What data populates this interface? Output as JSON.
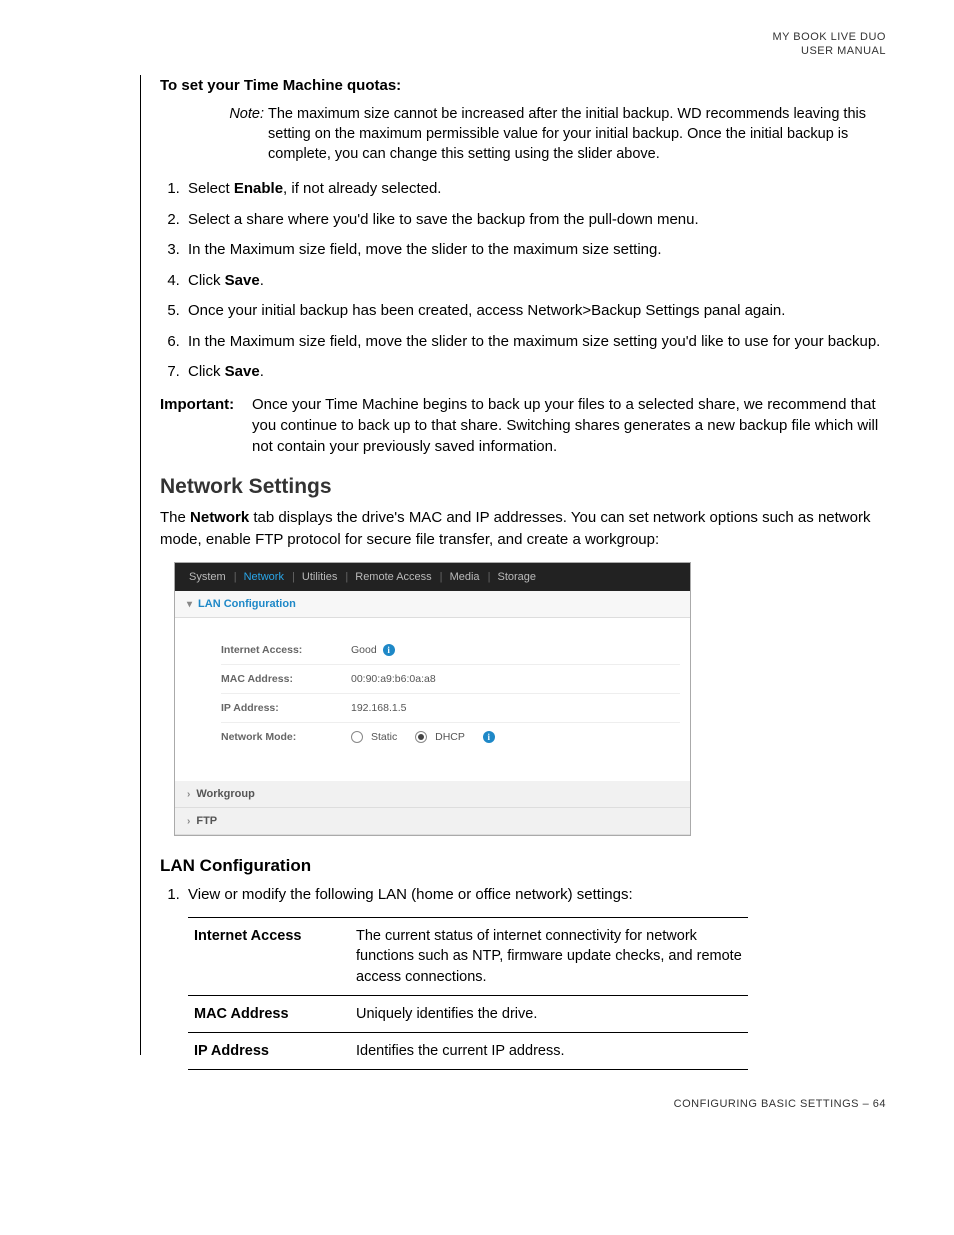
{
  "header": {
    "line1": "MY BOOK LIVE DUO",
    "line2": "USER MANUAL"
  },
  "tm": {
    "heading": "To set your Time Machine quotas:",
    "note_label": "Note:",
    "note": "The maximum size cannot be increased after the initial backup. WD recommends leaving this setting on the maximum permissible value for your initial backup. Once the initial backup is complete, you can change this setting using the slider above.",
    "steps": {
      "s1a": "Select ",
      "s1b": "Enable",
      "s1c": ", if not already selected.",
      "s2": "Select a share where you'd like to save the backup from the pull-down menu.",
      "s3": "In the Maximum size field, move the slider to the maximum size setting.",
      "s4a": "Click ",
      "s4b": "Save",
      "s4c": ".",
      "s5": "Once your initial backup has been created, access Network>Backup Settings panal again.",
      "s6": "In the Maximum size field, move the slider to the maximum size setting you'd like to use for your backup.",
      "s7a": "Click ",
      "s7b": "Save",
      "s7c": "."
    },
    "important_label": "Important:",
    "important": "Once your Time Machine begins to back up your files to a selected share, we recommend that you continue to back up to that share. Switching shares generates a new backup file which will not contain your previously saved information."
  },
  "net": {
    "heading": "Network Settings",
    "intro_a": "The ",
    "intro_b": "Network",
    "intro_c": " tab displays the drive's MAC and IP addresses. You can set network options such as network mode, enable FTP protocol for secure file transfer, and create a workgroup:"
  },
  "shot": {
    "tabs": {
      "system": "System",
      "network": "Network",
      "utilities": "Utilities",
      "remote": "Remote Access",
      "media": "Media",
      "storage": "Storage"
    },
    "section_lan": "LAN Configuration",
    "rows": {
      "ia_label": "Internet Access:",
      "ia_value": "Good",
      "mac_label": "MAC Address:",
      "mac_value": "00:90:a9:b6:0a:a8",
      "ip_label": "IP Address:",
      "ip_value": "192.168.1.5",
      "nm_label": "Network Mode:",
      "nm_static": "Static",
      "nm_dhcp": "DHCP"
    },
    "section_wg": "Workgroup",
    "section_ftp": "FTP"
  },
  "lan": {
    "heading": "LAN Configuration",
    "step1": "View or modify the following LAN (home or office network) settings:",
    "defs": {
      "ia_label": "Internet Access",
      "ia_text": "The current status of internet connectivity for network functions such as NTP, firmware update checks, and remote access connections.",
      "mac_label": "MAC Address",
      "mac_text": "Uniquely identifies the drive.",
      "ip_label": "IP Address",
      "ip_text": "Identifies the current IP address."
    }
  },
  "footer": "CONFIGURING BASIC SETTINGS – 64"
}
